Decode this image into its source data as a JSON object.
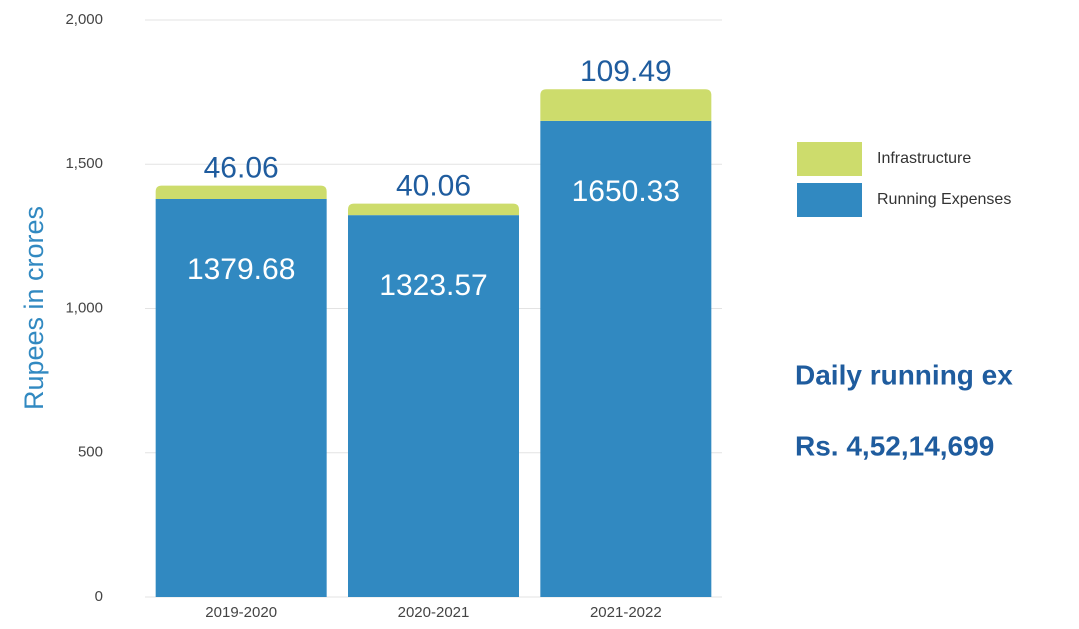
{
  "chart_data": {
    "type": "stacked_bar",
    "y_axis_label": "Rupees in crores",
    "categories": [
      "2019-2020",
      "2020-2021",
      "2021-2022"
    ],
    "series": [
      {
        "name": "Running Expenses",
        "color": "#3189c1",
        "values": [
          1379.68,
          1323.57,
          1650.33
        ]
      },
      {
        "name": "Infrastructure",
        "color": "#cddc6c",
        "values": [
          46.06,
          40.06,
          109.49
        ]
      }
    ],
    "ylim": [
      0,
      2000
    ],
    "yticks": [
      0,
      500,
      {
        "value": 1000,
        "label": "1,000"
      },
      {
        "value": 1500,
        "label": "1,500"
      },
      {
        "value": 2000,
        "label": "2,000"
      }
    ],
    "grid": true,
    "annotations": [
      "Daily running ex",
      "Rs. 4,52,14,699"
    ]
  }
}
